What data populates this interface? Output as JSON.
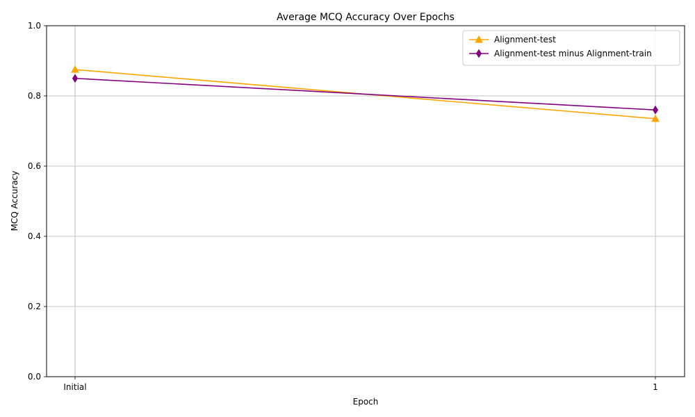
{
  "chart_data": {
    "type": "line",
    "title": "Average MCQ Accuracy Over Epochs",
    "xlabel": "Epoch",
    "ylabel": "MCQ Accuracy",
    "categories": [
      "Initial",
      "1"
    ],
    "ylim": [
      0,
      1
    ],
    "yticks": [
      0.0,
      0.2,
      0.4,
      0.6,
      0.8,
      1.0
    ],
    "ytick_labels": [
      "0.0",
      "0.2",
      "0.4",
      "0.6",
      "0.8",
      "1.0"
    ],
    "grid": true,
    "legend_position": "top-right",
    "series": [
      {
        "name": "Alignment-test",
        "values": [
          0.875,
          0.735
        ],
        "color": "#ffa500",
        "marker": "triangle-up"
      },
      {
        "name": "Alignment-test minus Alignment-train",
        "values": [
          0.85,
          0.76
        ],
        "color": "#800080",
        "marker": "thin-diamond"
      }
    ]
  }
}
